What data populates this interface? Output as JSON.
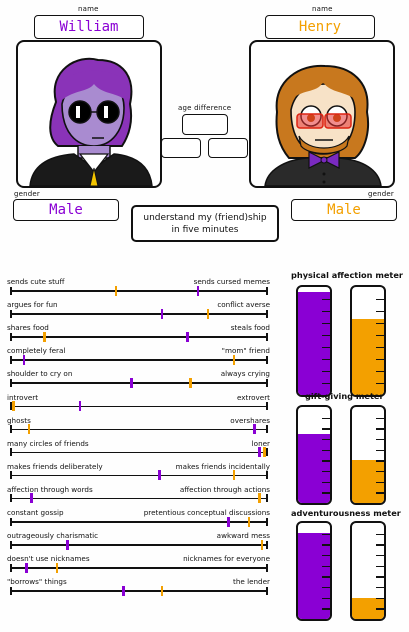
{
  "colors": {
    "purple": "#8a00d4",
    "orange": "#f3a000",
    "outline": "#111111"
  },
  "left_person": {
    "name_label": "name",
    "name": "William",
    "gender_label": "gender",
    "gender": "Male"
  },
  "right_person": {
    "name_label": "name",
    "name": "Henry",
    "gender_label": "gender",
    "gender": "Male"
  },
  "age_difference_label": "age difference",
  "title": [
    "understand my (friend)ship",
    "in five minutes"
  ],
  "traits": [
    {
      "left": "sends cute stuff",
      "right": "sends cursed memes",
      "purple": 0.73,
      "orange": 0.41
    },
    {
      "left": "argues for fun",
      "right": "conflict averse",
      "purple": 0.59,
      "orange": 0.77
    },
    {
      "left": "shares food",
      "right": "steals food",
      "purple": 0.69,
      "orange": 0.13
    },
    {
      "left": "completely feral",
      "right": "\"mom\" friend",
      "purple": 0.05,
      "orange": 0.87
    },
    {
      "left": "shoulder to cry on",
      "right": "always crying",
      "purple": 0.47,
      "orange": 0.7
    },
    {
      "left": "introvert",
      "right": "extrovert",
      "purple": 0.27,
      "orange": 0.01
    },
    {
      "left": "ghosts",
      "right": "overshares",
      "purple": 0.95,
      "orange": 0.07
    },
    {
      "left": "many circles of friends",
      "right": "loner",
      "purple": 0.97,
      "orange": 0.99
    },
    {
      "left": "makes friends deliberately",
      "right": "makes friends incidentally",
      "purple": 0.58,
      "orange": 0.87
    },
    {
      "left": "affection through words",
      "right": "affection through actions",
      "purple": 0.08,
      "orange": 0.97
    },
    {
      "left": "constant gossip",
      "right": "pretentious conceptual discussions",
      "purple": 0.85,
      "orange": 0.93
    },
    {
      "left": "outrageously charismatic",
      "right": "awkward mess",
      "purple": 0.22,
      "orange": 0.98
    },
    {
      "left": "doesn't use nicknames",
      "right": "nicknames for everyone",
      "purple": 0.06,
      "orange": 0.18
    },
    {
      "left": "\"borrows\" things",
      "right": "the lender",
      "purple": 0.44,
      "orange": 0.59
    }
  ],
  "meters": [
    {
      "title": "physical affection meter",
      "purple": 0.95,
      "orange": 0.7
    },
    {
      "title": "gift-giving meter",
      "purple": 0.72,
      "orange": 0.45
    },
    {
      "title": "adventurousness meter",
      "purple": 0.9,
      "orange": 0.22
    }
  ]
}
